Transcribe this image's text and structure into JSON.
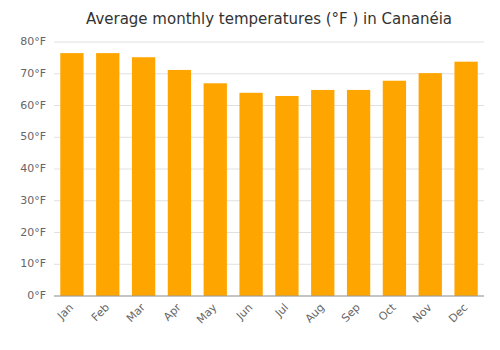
{
  "chart_data": {
    "type": "bar",
    "title": "Average monthly temperatures (°F ) in Cananéia",
    "categories": [
      "Jan",
      "Feb",
      "Mar",
      "Apr",
      "May",
      "Jun",
      "Jul",
      "Aug",
      "Sep",
      "Oct",
      "Nov",
      "Dec"
    ],
    "values": [
      76.5,
      76.5,
      75.2,
      71.2,
      67.0,
      64.0,
      63.0,
      64.9,
      64.9,
      67.8,
      70.2,
      73.8
    ],
    "color": "#FFA500",
    "ylim": [
      0,
      80
    ],
    "yticks": [
      {
        "value": 0,
        "label": "0°F"
      },
      {
        "value": 10,
        "label": "10°F"
      },
      {
        "value": 20,
        "label": "20°F"
      },
      {
        "value": 30,
        "label": "30°F"
      },
      {
        "value": 40,
        "label": "40°F"
      },
      {
        "value": 50,
        "label": "50°F"
      },
      {
        "value": 60,
        "label": "60°F"
      },
      {
        "value": 70,
        "label": "70°F"
      },
      {
        "value": 80,
        "label": "80°F"
      }
    ],
    "grid": true
  }
}
